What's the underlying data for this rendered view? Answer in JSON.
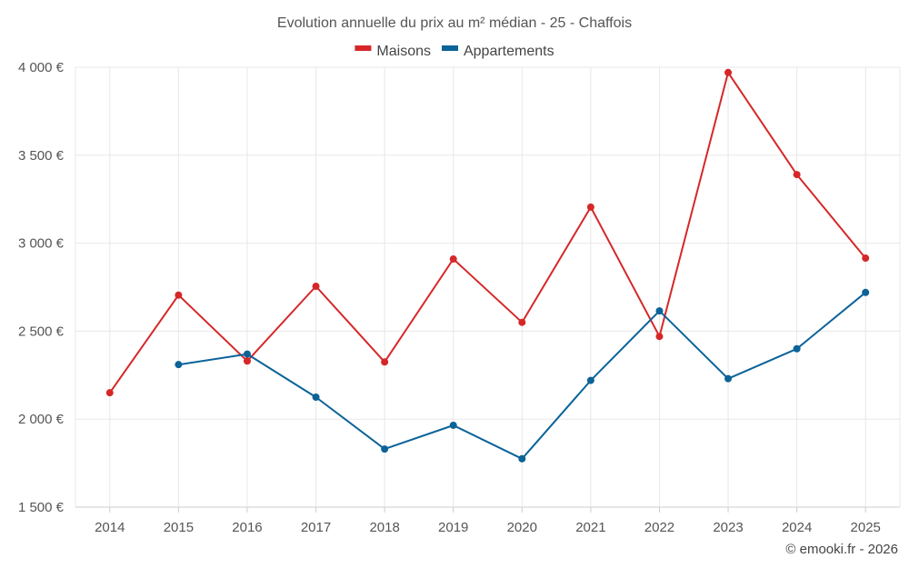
{
  "chart_data": {
    "type": "line",
    "title": "Evolution annuelle du prix au m² médian - 25 - Chaffois",
    "categories": [
      "2014",
      "2015",
      "2016",
      "2017",
      "2018",
      "2019",
      "2020",
      "2021",
      "2022",
      "2023",
      "2024",
      "2025"
    ],
    "series": [
      {
        "name": "Maisons",
        "color": "#d62728",
        "values": [
          2150,
          2705,
          2330,
          2755,
          2325,
          2910,
          2550,
          3205,
          2470,
          3970,
          3390,
          2915
        ]
      },
      {
        "name": "Appartements",
        "color": "#0b6398",
        "values": [
          null,
          2310,
          2370,
          2125,
          1830,
          1965,
          1775,
          2220,
          2615,
          2230,
          2400,
          2720
        ]
      }
    ],
    "ylim": [
      1500,
      4000
    ],
    "yticks": [
      1500,
      2000,
      2500,
      3000,
      3500,
      4000
    ],
    "ytick_labels": [
      "1 500 €",
      "2 000 €",
      "2 500 €",
      "3 000 €",
      "3 500 €",
      "4 000 €"
    ],
    "xlabel": "",
    "ylabel": "",
    "grid": true,
    "legend_position": "top-center"
  },
  "credit": "© emooki.fr - 2026"
}
